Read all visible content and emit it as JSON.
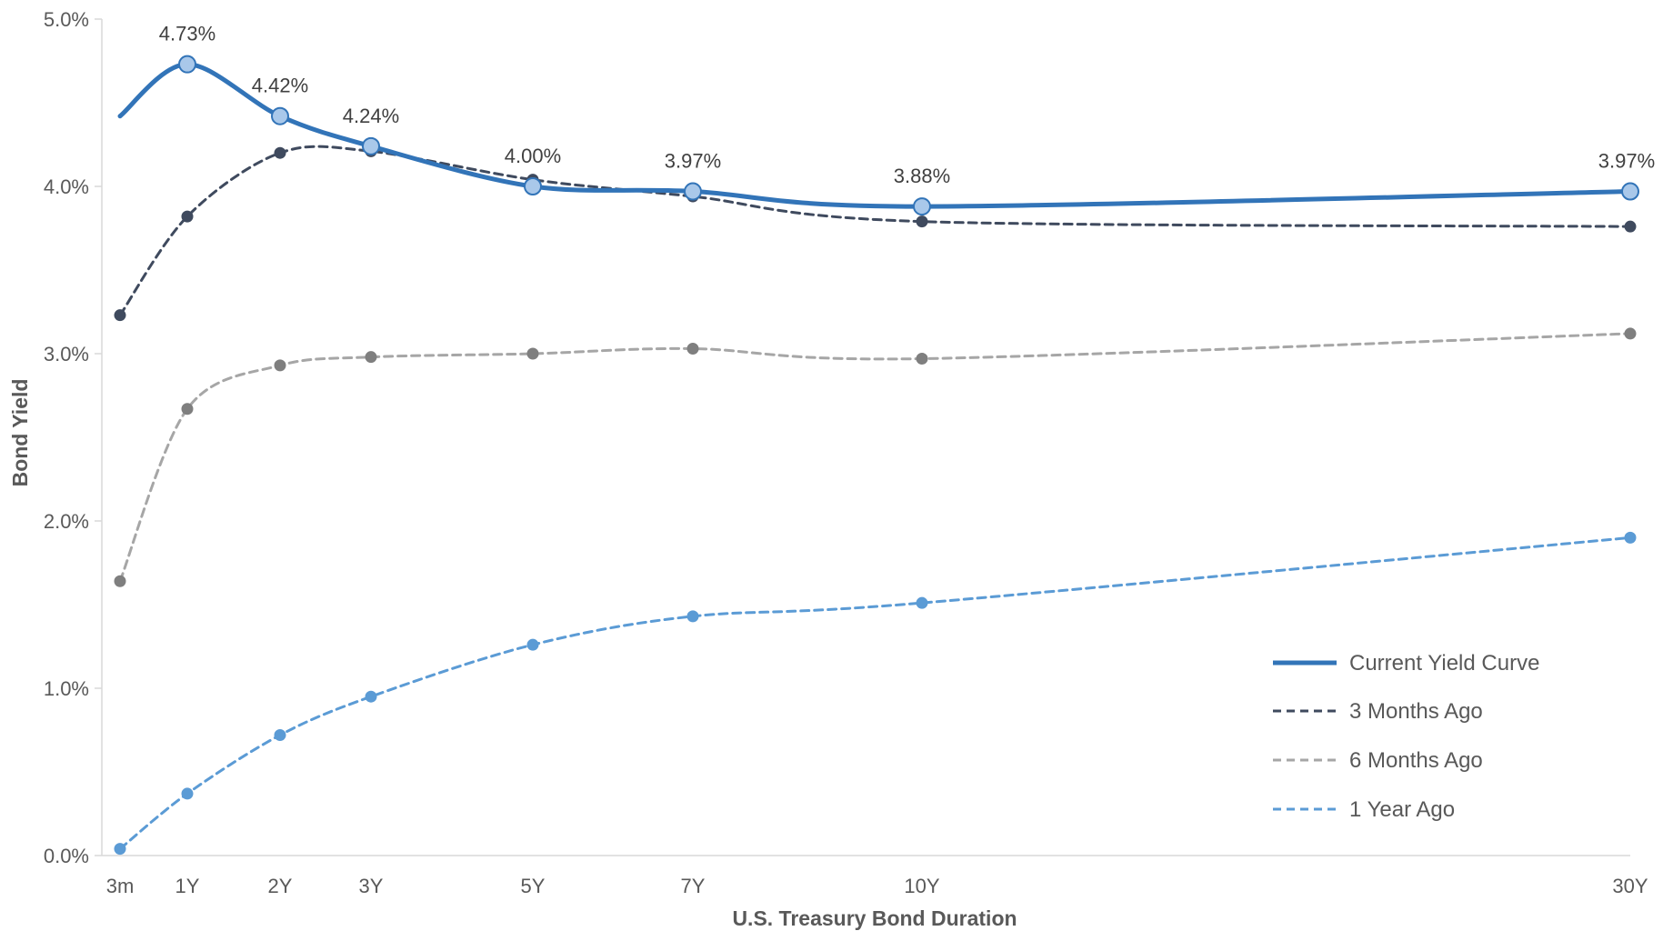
{
  "colors": {
    "current": "#3274b8",
    "current_marker_fill": "#a9c8ea",
    "three_months": "#3f4a5e",
    "six_months": "#a6a6a6",
    "six_months_marker": "#7f7f7f",
    "one_year": "#5b9bd5",
    "axis": "#d9d9d9",
    "text": "#595959"
  },
  "chart_data": {
    "type": "line",
    "xlabel": "U.S. Treasury Bond Duration",
    "ylabel": "Bond Yield",
    "ylim": [
      0,
      5
    ],
    "yticks": [
      "0.0%",
      "1.0%",
      "2.0%",
      "3.0%",
      "4.0%",
      "5.0%"
    ],
    "x_years": [
      0.25,
      1,
      2,
      3,
      5,
      7,
      10,
      30
    ],
    "categories": [
      "3m",
      "1Y",
      "2Y",
      "3Y",
      "5Y",
      "7Y",
      "10Y",
      "30Y"
    ],
    "legend_position": "bottom-right",
    "grid": false,
    "series": [
      {
        "name": "Current Yield Curve",
        "style": "solid",
        "values": [
          4.42,
          4.73,
          4.42,
          4.24,
          4.0,
          3.97,
          3.88,
          3.97
        ],
        "labels": [
          "",
          "4.73%",
          "4.42%",
          "4.24%",
          "4.00%",
          "3.97%",
          "3.88%",
          "3.97%"
        ]
      },
      {
        "name": "3 Months Ago",
        "style": "dashed",
        "values": [
          3.23,
          3.82,
          4.2,
          4.21,
          4.04,
          3.94,
          3.79,
          3.76
        ]
      },
      {
        "name": "6 Months Ago",
        "style": "dashed",
        "values": [
          1.64,
          2.67,
          2.93,
          2.98,
          3.0,
          3.03,
          2.97,
          3.12
        ]
      },
      {
        "name": "1 Year Ago",
        "style": "dashed",
        "values": [
          0.04,
          0.37,
          0.72,
          0.95,
          1.26,
          1.43,
          1.51,
          1.9
        ]
      }
    ]
  }
}
